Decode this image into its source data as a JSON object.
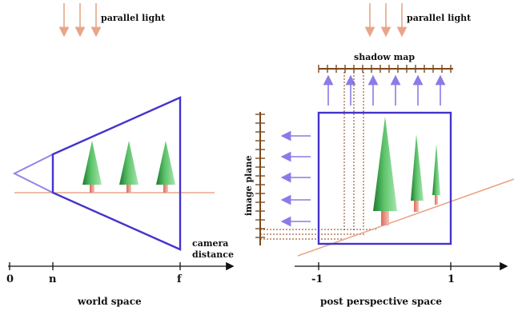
{
  "left_panel": {
    "light_label": "parallel light",
    "axis_label": "world space",
    "camera_label_line1": "camera",
    "camera_label_line2": "distance",
    "ticks": [
      "0",
      "n",
      "f"
    ]
  },
  "right_panel": {
    "light_label": "parallel light",
    "shadow_map_label": "shadow map",
    "image_plane_label": "image plane",
    "axis_label": "post perspective space",
    "ticks": [
      "-1",
      "1"
    ]
  },
  "colors": {
    "light_arrow": "#e8a58a",
    "ground": "#e8a58a",
    "frustum": "#4433cc",
    "frustum_light": "#8f86e6",
    "tree_green": "#3aa34a",
    "tree_trunk": "#e38b7a",
    "shadow_map_bar": "#7a4a1e",
    "projection_arrow": "#8a7ce6",
    "dotted_line": "#8a3b12",
    "axis": "#111111"
  }
}
